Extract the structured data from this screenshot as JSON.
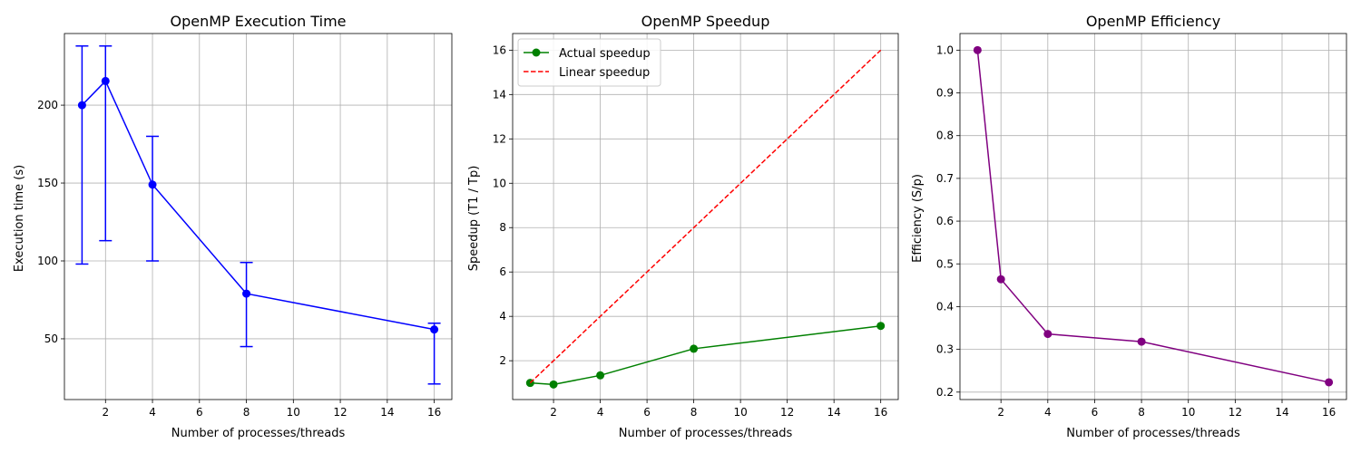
{
  "chart_data": [
    {
      "type": "line",
      "title": "OpenMP Execution Time",
      "xlabel": "Number of processes/threads",
      "ylabel": "Execution time (s)",
      "xlim": [
        0.25,
        16.75
      ],
      "ylim": [
        11,
        246
      ],
      "xticks": [
        2,
        4,
        6,
        8,
        10,
        12,
        14,
        16
      ],
      "yticks": [
        50,
        100,
        150,
        200
      ],
      "grid": true,
      "series": [
        {
          "color": "#0000ff",
          "marker": "circle",
          "x": [
            1,
            2,
            4,
            8,
            16
          ],
          "y": [
            200,
            215.5,
            149,
            79,
            56
          ],
          "error_low": [
            98,
            113,
            100,
            45,
            21
          ],
          "error_high": [
            238,
            238,
            180,
            99,
            60
          ]
        }
      ]
    },
    {
      "type": "line",
      "title": "OpenMP Speedup",
      "xlabel": "Number of processes/threads",
      "ylabel": "Speedup (T1 / Tp)",
      "xlim": [
        0.25,
        16.75
      ],
      "ylim": [
        0.25,
        16.75
      ],
      "xticks": [
        2,
        4,
        6,
        8,
        10,
        12,
        14,
        16
      ],
      "yticks": [
        2,
        4,
        6,
        8,
        10,
        12,
        14,
        16
      ],
      "grid": true,
      "legend": "top-left",
      "series": [
        {
          "name": "Actual speedup",
          "color": "#008000",
          "marker": "circle",
          "dash": "solid",
          "x": [
            1,
            2,
            4,
            8,
            16
          ],
          "y": [
            1.0,
            0.93,
            1.34,
            2.54,
            3.57
          ]
        },
        {
          "name": "Linear speedup",
          "color": "#ff0000",
          "marker": "none",
          "dash": "dashed",
          "x": [
            1,
            16
          ],
          "y": [
            1,
            16
          ]
        }
      ]
    },
    {
      "type": "line",
      "title": "OpenMP Efficiency",
      "xlabel": "Number of processes/threads",
      "ylabel": "Efficiency (S/p)",
      "xlim": [
        0.25,
        16.75
      ],
      "ylim": [
        0.1826,
        1.0389
      ],
      "xticks": [
        2,
        4,
        6,
        8,
        10,
        12,
        14,
        16
      ],
      "yticks": [
        0.2,
        0.3,
        0.4,
        0.5,
        0.6,
        0.7,
        0.8,
        0.9,
        1.0
      ],
      "grid": true,
      "series": [
        {
          "color": "#800080",
          "marker": "circle",
          "x": [
            1,
            2,
            4,
            8,
            16
          ],
          "y": [
            1.0,
            0.464,
            0.336,
            0.318,
            0.223
          ]
        }
      ]
    }
  ]
}
